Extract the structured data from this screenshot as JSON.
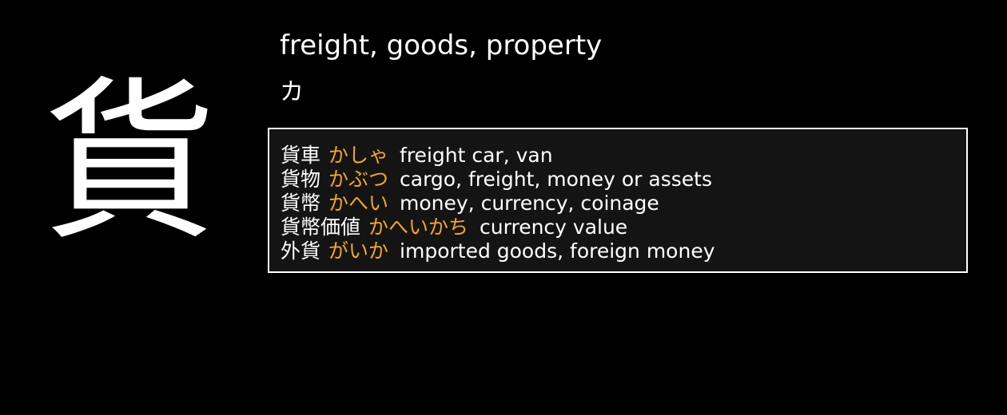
{
  "kanji": "貨",
  "meaning": "freight, goods, property",
  "reading": "カ",
  "colors": {
    "background": "#000000",
    "text": "#ffffff",
    "kana_accent": "#f5a623",
    "box_background": "#141414",
    "box_border": "#ffffff"
  },
  "vocabulary": [
    {
      "word": "貨車",
      "kana": "かしゃ",
      "gloss": "freight car, van"
    },
    {
      "word": "貨物",
      "kana": "かぶつ",
      "gloss": "cargo, freight, money or assets"
    },
    {
      "word": "貨幣",
      "kana": "かへい",
      "gloss": "money, currency, coinage"
    },
    {
      "word": "貨幣価値",
      "kana": "かへいかち",
      "gloss": "currency value"
    },
    {
      "word": "外貨",
      "kana": "がいか",
      "gloss": "imported goods, foreign money"
    }
  ]
}
